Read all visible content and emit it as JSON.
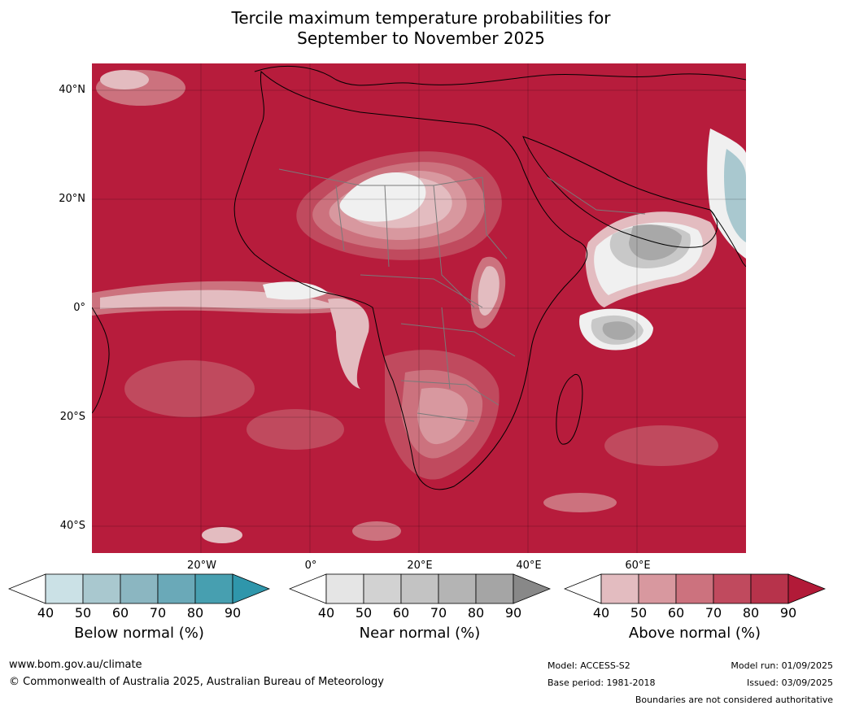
{
  "title": {
    "line1": "Tercile maximum temperature probabilities for",
    "line2": "September to November 2025"
  },
  "map": {
    "region": "Africa",
    "lat_labels": [
      "40°N",
      "20°N",
      "0°",
      "20°S",
      "40°S"
    ],
    "lon_labels": [
      "20°W",
      "0°",
      "20°E",
      "40°E",
      "60°E"
    ],
    "colors": {
      "ocean_base": "#b71c3c",
      "above_80": "#c04a5e",
      "above_70": "#cc727e",
      "above_60": "#d8989f",
      "above_50": "#e3bcc0",
      "near_white": "#f0f0f0",
      "near_60": "#c8c8c8",
      "near_80": "#a8a8a8",
      "below_50": "#a9c8cf",
      "coast": "#000000",
      "borders": "#7a7a7a"
    }
  },
  "legends": [
    {
      "label": "Below normal (%)",
      "ticks": [
        "40",
        "50",
        "60",
        "70",
        "80",
        "90"
      ],
      "colors": [
        "#ffffff",
        "#cbe1e6",
        "#a9c8cf",
        "#8bb6c1",
        "#6aa9b8",
        "#479fb0",
        "#2f96ab"
      ]
    },
    {
      "label": "Near normal (%)",
      "ticks": [
        "40",
        "50",
        "60",
        "70",
        "80",
        "90"
      ],
      "colors": [
        "#ffffff",
        "#e5e5e5",
        "#d2d2d2",
        "#c3c3c3",
        "#b4b4b4",
        "#a5a5a5",
        "#888888"
      ]
    },
    {
      "label": "Above normal (%)",
      "ticks": [
        "40",
        "50",
        "60",
        "70",
        "80",
        "90"
      ],
      "colors": [
        "#ffffff",
        "#e3bcc0",
        "#d8989f",
        "#cc727e",
        "#c04a5e",
        "#b7334b",
        "#b21a38"
      ]
    }
  ],
  "footer": {
    "url": "www.bom.gov.au/climate",
    "copyright": "© Commonwealth of Australia 2025, Australian Bureau of Meteorology",
    "model": "Model: ACCESS-S2",
    "base_period": "Base period: 1981-2018",
    "model_run": "Model run: 01/09/2025",
    "issued": "Issued: 03/09/2025",
    "disclaimer": "Boundaries are not considered authoritative"
  }
}
